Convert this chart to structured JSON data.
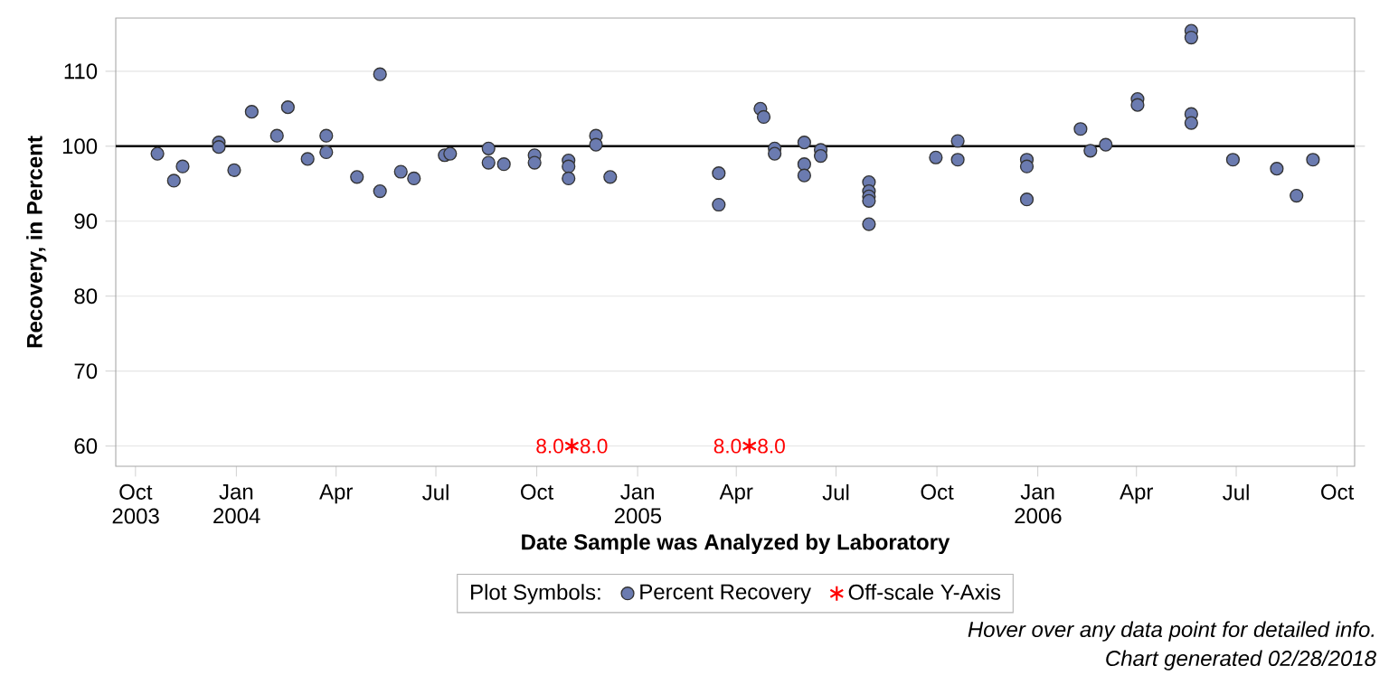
{
  "chart_data": {
    "type": "scatter",
    "xlabel": "Date Sample was Analyzed by Laboratory",
    "ylabel": "Recovery, in Percent",
    "legend_title": "Plot Symbols:",
    "legend": "bottom",
    "grid": "y",
    "xlim": [
      "2003-09-13",
      "2006-10-17"
    ],
    "ylim": [
      57.3,
      117.1
    ],
    "yticks": [
      60,
      70,
      80,
      90,
      100,
      110
    ],
    "xticks": [
      {
        "value": "2003-10-01",
        "label": "Oct 2003"
      },
      {
        "value": "2004-01-01",
        "label": "Jan 2004"
      },
      {
        "value": "2004-04-01",
        "label": "Apr"
      },
      {
        "value": "2004-07-01",
        "label": "Jul"
      },
      {
        "value": "2004-10-01",
        "label": "Oct"
      },
      {
        "value": "2005-01-01",
        "label": "Jan 2005"
      },
      {
        "value": "2005-04-01",
        "label": "Apr"
      },
      {
        "value": "2005-07-01",
        "label": "Jul"
      },
      {
        "value": "2005-10-01",
        "label": "Oct"
      },
      {
        "value": "2006-01-01",
        "label": "Jan 2006"
      },
      {
        "value": "2006-04-01",
        "label": "Apr"
      },
      {
        "value": "2006-07-01",
        "label": "Jul"
      },
      {
        "value": "2006-10-01",
        "label": "Oct"
      }
    ],
    "ref_lines": [
      {
        "axis": "y",
        "value": 100,
        "color": "#000000"
      }
    ],
    "series": [
      {
        "name": "Percent Recovery",
        "color": "#6b7bb0",
        "marker": "circle",
        "x": [
          "2003-10-21",
          "2003-11-05",
          "2003-11-13",
          "2003-12-16",
          "2003-12-16",
          "2003-12-30",
          "2004-01-15",
          "2004-02-07",
          "2004-02-17",
          "2004-03-06",
          "2004-03-23",
          "2004-03-23",
          "2004-04-20",
          "2004-05-11",
          "2004-05-11",
          "2004-05-30",
          "2004-06-11",
          "2004-07-09",
          "2004-07-14",
          "2004-08-18",
          "2004-08-18",
          "2004-09-01",
          "2004-09-29",
          "2004-09-29",
          "2004-10-30",
          "2004-10-30",
          "2004-10-30",
          "2004-11-24",
          "2004-11-24",
          "2004-12-07",
          "2005-03-16",
          "2005-03-16",
          "2005-04-23",
          "2005-04-26",
          "2005-05-06",
          "2005-05-06",
          "2005-06-02",
          "2005-06-02",
          "2005-06-02",
          "2005-06-17",
          "2005-06-17",
          "2005-07-31",
          "2005-07-31",
          "2005-07-31",
          "2005-07-31",
          "2005-07-31",
          "2005-09-30",
          "2005-10-20",
          "2005-10-20",
          "2005-12-22",
          "2005-12-22",
          "2005-12-22",
          "2006-02-09",
          "2006-02-18",
          "2006-03-04",
          "2006-04-02",
          "2006-04-02",
          "2006-05-21",
          "2006-05-21",
          "2006-05-21",
          "2006-05-21",
          "2006-06-28",
          "2006-08-07",
          "2006-08-25",
          "2006-09-09"
        ],
        "values": [
          99.0,
          95.4,
          97.3,
          100.5,
          99.9,
          96.8,
          104.6,
          101.4,
          105.2,
          98.3,
          101.4,
          99.2,
          95.9,
          109.6,
          94.0,
          96.6,
          95.7,
          98.8,
          99.0,
          99.7,
          97.8,
          97.6,
          98.8,
          97.8,
          98.1,
          97.3,
          95.7,
          101.4,
          100.2,
          95.9,
          96.4,
          92.2,
          105.0,
          103.9,
          99.7,
          99.0,
          100.5,
          97.6,
          96.1,
          99.5,
          98.7,
          95.2,
          94.0,
          93.3,
          92.7,
          89.6,
          98.5,
          100.7,
          98.2,
          98.2,
          97.3,
          92.9,
          102.3,
          99.4,
          100.2,
          106.3,
          105.5,
          115.4,
          114.5,
          104.3,
          103.1,
          98.2,
          97.0,
          93.4,
          98.2
        ]
      },
      {
        "name": "Off-scale Y-Axis",
        "color": "#ff0000",
        "marker": "cross",
        "x": [
          "2004-11-02",
          "2004-11-02",
          "2005-04-13",
          "2005-04-13"
        ],
        "values": [
          60,
          60,
          60,
          60
        ]
      }
    ],
    "annotations": [
      {
        "text": "8.0",
        "x": "2004-11-02",
        "y": 60
      },
      {
        "text": "8.0",
        "x": "2004-11-02",
        "y": 60
      },
      {
        "text": "8.0",
        "x": "2005-04-13",
        "y": 60
      },
      {
        "text": "8.0",
        "x": "2005-04-13",
        "y": 60
      },
      "Hover over any data point for detailed info.",
      "Chart generated 02/28/2018"
    ]
  }
}
